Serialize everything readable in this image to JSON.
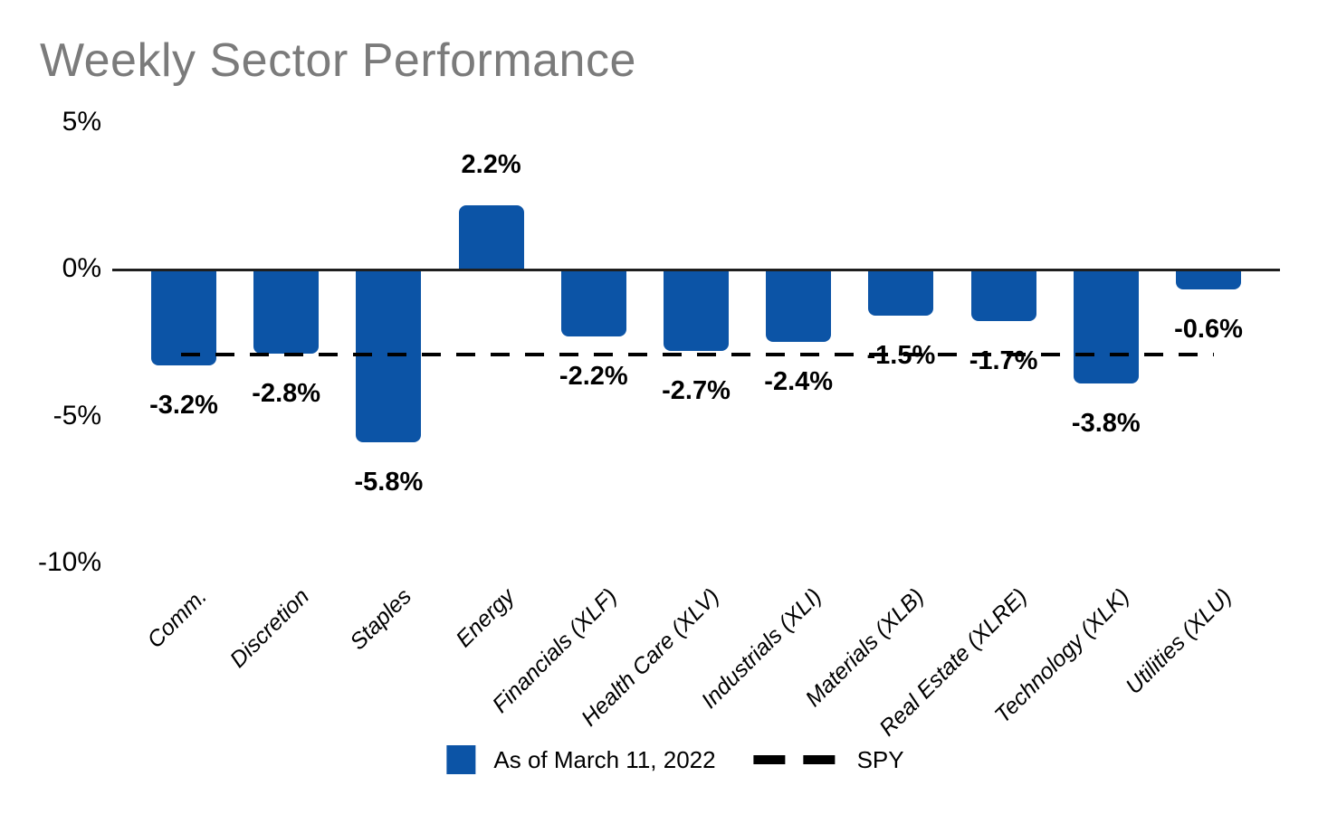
{
  "chart_data": {
    "type": "bar",
    "title": "Weekly Sector Performance",
    "title_color": "#7b7b7b",
    "categories": [
      "Comm.",
      "Discretion",
      "Staples",
      "Energy",
      "Financials (XLF)",
      "Health Care (XLV)",
      "Industrials (XLI)",
      "Materials (XLB)",
      "Real Estate (XLRE)",
      "Technology (XLK)",
      "Utilities (XLU)"
    ],
    "values": [
      -3.2,
      -2.8,
      -5.8,
      2.2,
      -2.2,
      -2.7,
      -2.4,
      -1.5,
      -1.7,
      -3.8,
      -0.6
    ],
    "value_suffix": "%",
    "xlabel": "",
    "ylabel": "",
    "y_ticks": [
      "5%",
      "0%",
      "-5%",
      "-10%"
    ],
    "y_tick_values": [
      5,
      0,
      -5,
      -10
    ],
    "ylim": [
      -10,
      5
    ],
    "grid": false,
    "bar_color": "#0C54A6",
    "spy_line": {
      "name": "SPY",
      "value": -2.9,
      "style": "dashed",
      "color": "#000000"
    },
    "legend_position": "bottom-center",
    "legend": [
      {
        "label": "As of March 11, 2022",
        "swatch": "square",
        "color": "#0C54A6"
      },
      {
        "label": "SPY",
        "swatch": "dashes",
        "color": "#000000"
      }
    ]
  }
}
